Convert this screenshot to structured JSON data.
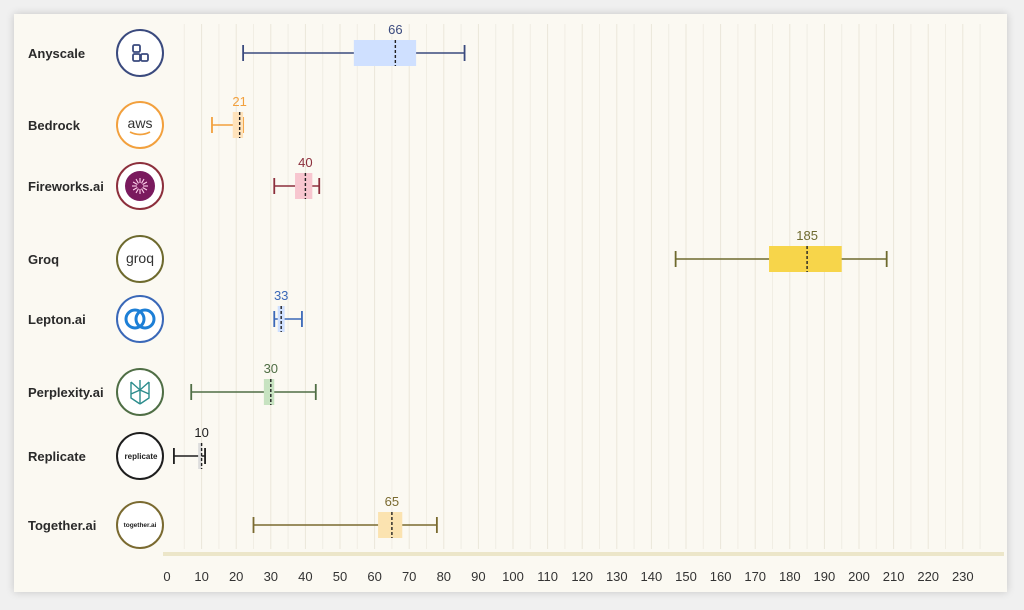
{
  "chart_data": {
    "type": "box",
    "orientation": "horizontal",
    "xlim": [
      0,
      230
    ],
    "x_ticks": [
      0,
      10,
      20,
      30,
      40,
      50,
      60,
      70,
      80,
      90,
      100,
      110,
      120,
      130,
      140,
      150,
      160,
      170,
      180,
      190,
      200,
      210,
      220,
      230
    ],
    "grid": "vertical",
    "categories": [
      "Anyscale",
      "Bedrock",
      "Fireworks.ai",
      "Groq",
      "Lepton.ai",
      "Perplexity.ai",
      "Replicate",
      "Together.ai"
    ],
    "series": [
      {
        "name": "Anyscale",
        "min": 22,
        "q1": 54,
        "median": 66,
        "q3": 72,
        "max": 86,
        "median_label": "66",
        "color": "#3a4a7e",
        "box_color": "#cfe0ff",
        "logo": {
          "icon": "anyscale-logo-icon"
        }
      },
      {
        "name": "Bedrock",
        "min": 13,
        "q1": 19,
        "median": 21,
        "q3": 22,
        "max": 22,
        "median_label": "21",
        "color": "#f2a03d",
        "box_color": "#ffe3bb",
        "logo": {
          "icon": "aws-logo-icon",
          "text": "aws"
        }
      },
      {
        "name": "Fireworks.ai",
        "min": 31,
        "q1": 37,
        "median": 40,
        "q3": 42,
        "max": 44,
        "median_label": "40",
        "color": "#8c2f3c",
        "box_color": "#f7c6cf",
        "logo": {
          "icon": "fireworks-logo-icon"
        }
      },
      {
        "name": "Groq",
        "min": 147,
        "q1": 174,
        "median": 185,
        "q3": 195,
        "max": 208,
        "median_label": "185",
        "color": "#6e6a2e",
        "box_color": "#f7d54a",
        "logo": {
          "icon": "groq-logo-icon",
          "text": "groq"
        }
      },
      {
        "name": "Lepton.ai",
        "min": 31,
        "q1": 32,
        "median": 33,
        "q3": 34,
        "max": 39,
        "median_label": "33",
        "color": "#3a68b8",
        "box_color": "#cfe0ff",
        "logo": {
          "icon": "lepton-logo-icon"
        }
      },
      {
        "name": "Perplexity.ai",
        "min": 7,
        "q1": 28,
        "median": 30,
        "q3": 31,
        "max": 43,
        "median_label": "30",
        "color": "#4f6e45",
        "box_color": "#c7e3c1",
        "logo": {
          "icon": "perplexity-logo-icon"
        }
      },
      {
        "name": "Replicate",
        "min": 2,
        "q1": 9,
        "median": 10,
        "q3": 10,
        "max": 11,
        "median_label": "10",
        "color": "#1e1e1e",
        "box_color": "#dddddd",
        "logo": {
          "icon": "replicate-logo-icon",
          "text": "replicate"
        }
      },
      {
        "name": "Together.ai",
        "min": 25,
        "q1": 61,
        "median": 65,
        "q3": 68,
        "max": 78,
        "median_label": "65",
        "color": "#7a6a30",
        "box_color": "#fbe3b0",
        "logo": {
          "icon": "together-logo-icon",
          "text": "together.ai"
        }
      }
    ]
  }
}
